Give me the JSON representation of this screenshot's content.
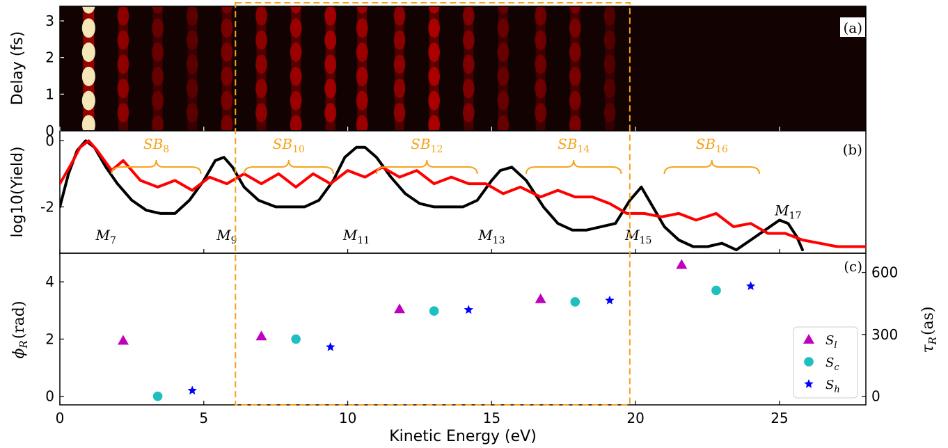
{
  "chart_data": [
    {
      "type": "heatmap",
      "panel": "(a)",
      "ylabel": "Delay (fs)",
      "xlim": [
        0,
        28
      ],
      "ylim": [
        0,
        3.4
      ],
      "yticks": [
        0,
        1,
        2,
        3
      ],
      "colormap": "hot",
      "bright_bands_eV": [
        1.0,
        2.2,
        3.4,
        4.6,
        5.8,
        7.0,
        8.2,
        9.4,
        10.5,
        11.8,
        13.0,
        14.2,
        15.4,
        16.7,
        17.9,
        19.1
      ],
      "band_strength": [
        1.0,
        0.35,
        0.22,
        0.18,
        0.28,
        0.35,
        0.4,
        0.42,
        0.4,
        0.35,
        0.45,
        0.3,
        0.22,
        0.25,
        0.28,
        0.15
      ],
      "oscillation_period_fs": 0.66
    },
    {
      "type": "line",
      "panel": "(b)",
      "ylabel": "log10(Yield)",
      "xlim": [
        0,
        28
      ],
      "ylim": [
        -3.4,
        0.3
      ],
      "yticks": [
        {
          "value": 0,
          "label": "0"
        },
        {
          "value": -2,
          "label": "-2"
        }
      ],
      "series": [
        {
          "name": "",
          "color": "#000000",
          "x": [
            0,
            0.3,
            0.6,
            0.9,
            1.2,
            1.6,
            2.0,
            2.5,
            3.0,
            3.5,
            4.0,
            4.5,
            5.0,
            5.4,
            5.7,
            6.0,
            6.4,
            6.9,
            7.5,
            8.0,
            8.5,
            9.0,
            9.5,
            9.9,
            10.3,
            10.6,
            11.0,
            11.5,
            12.0,
            12.5,
            13.0,
            13.5,
            14.0,
            14.5,
            15.0,
            15.3,
            15.7,
            16.2,
            16.8,
            17.3,
            17.8,
            18.3,
            18.8,
            19.3,
            19.8,
            20.2,
            20.6,
            21.0,
            21.5,
            22.0,
            22.5,
            23.0,
            23.5,
            24.0,
            24.5,
            25.0,
            25.3,
            25.6,
            25.8
          ],
          "y": [
            -2.0,
            -1.0,
            -0.3,
            0.0,
            -0.2,
            -0.8,
            -1.3,
            -1.8,
            -2.1,
            -2.2,
            -2.2,
            -1.8,
            -1.2,
            -0.6,
            -0.5,
            -0.8,
            -1.4,
            -1.8,
            -2.0,
            -2.0,
            -2.0,
            -1.8,
            -1.2,
            -0.5,
            -0.2,
            -0.2,
            -0.5,
            -1.1,
            -1.6,
            -1.9,
            -2.0,
            -2.0,
            -2.0,
            -1.8,
            -1.2,
            -0.9,
            -0.8,
            -1.2,
            -2.0,
            -2.5,
            -2.7,
            -2.7,
            -2.6,
            -2.5,
            -1.8,
            -1.4,
            -2.0,
            -2.6,
            -3.0,
            -3.2,
            -3.2,
            -3.1,
            -3.3,
            -3.0,
            -2.7,
            -2.4,
            -2.5,
            -2.9,
            -3.3
          ]
        },
        {
          "name": "",
          "color": "#ff0000",
          "x": [
            0,
            0.4,
            0.7,
            1.0,
            1.3,
            1.8,
            2.2,
            2.8,
            3.4,
            4.0,
            4.6,
            5.2,
            5.8,
            6.4,
            7.0,
            7.6,
            8.2,
            8.8,
            9.4,
            10.0,
            10.6,
            11.2,
            11.8,
            12.4,
            13.0,
            13.6,
            14.2,
            14.8,
            15.4,
            16.0,
            16.7,
            17.3,
            17.9,
            18.5,
            19.1,
            19.7,
            20.3,
            20.9,
            21.5,
            22.1,
            22.8,
            23.4,
            24.0,
            24.6,
            25.2,
            25.8,
            26.4,
            27.0,
            27.5,
            28.0
          ],
          "y": [
            -1.3,
            -0.7,
            -0.2,
            0.0,
            -0.3,
            -0.9,
            -0.6,
            -1.2,
            -1.4,
            -1.2,
            -1.5,
            -1.1,
            -1.3,
            -1.0,
            -1.3,
            -1.0,
            -1.4,
            -1.0,
            -1.3,
            -0.9,
            -1.1,
            -0.8,
            -1.1,
            -0.9,
            -1.3,
            -1.1,
            -1.3,
            -1.3,
            -1.6,
            -1.4,
            -1.7,
            -1.5,
            -1.7,
            -1.7,
            -1.9,
            -2.2,
            -2.2,
            -2.3,
            -2.2,
            -2.4,
            -2.2,
            -2.6,
            -2.5,
            -2.8,
            -2.8,
            -3.0,
            -3.1,
            -3.2,
            -3.2,
            -3.2
          ]
        }
      ],
      "annotations": [
        {
          "text": "M",
          "sub": "7",
          "x": 1.6,
          "y": -3.0
        },
        {
          "text": "M",
          "sub": "9",
          "x": 5.8,
          "y": -3.0
        },
        {
          "text": "M",
          "sub": "11",
          "x": 10.3,
          "y": -3.0
        },
        {
          "text": "M",
          "sub": "13",
          "x": 15.0,
          "y": -3.0
        },
        {
          "text": "M",
          "sub": "15",
          "x": 20.1,
          "y": -3.0
        },
        {
          "text": "M",
          "sub": "17",
          "x": 25.3,
          "y": -2.25
        }
      ],
      "sideband_groups": [
        {
          "text": "SB",
          "sub": "8",
          "x_start": 1.8,
          "x_end": 4.9
        },
        {
          "text": "SB",
          "sub": "10",
          "x_start": 6.4,
          "x_end": 9.5
        },
        {
          "text": "SB",
          "sub": "12",
          "x_start": 11.0,
          "x_end": 14.5
        },
        {
          "text": "SB",
          "sub": "14",
          "x_start": 16.2,
          "x_end": 19.5
        },
        {
          "text": "SB",
          "sub": "16",
          "x_start": 21.0,
          "x_end": 24.3
        }
      ]
    },
    {
      "type": "scatter",
      "panel": "(c)",
      "xlabel": "Kinetic Energy (eV)",
      "ylabel": "ϕ",
      "ylabel_sub": "R",
      "ylabel_unit": "(rad)",
      "ylabel_right": "τ",
      "ylabel_right_sub": "R",
      "ylabel_right_unit": "(as)",
      "xlim": [
        0,
        28
      ],
      "xticks": [
        0,
        5,
        10,
        15,
        20,
        25
      ],
      "ylim": [
        -0.3,
        5.0
      ],
      "yticks": [
        0,
        2,
        4
      ],
      "yticks_right": [
        {
          "value": 0,
          "label": "0"
        },
        {
          "value": 2.16,
          "label": "300"
        },
        {
          "value": 4.33,
          "label": "600"
        }
      ],
      "legend_position": "lower-right",
      "series": [
        {
          "name": "S",
          "sub": "l",
          "marker": "triangle",
          "color": "#bf00bf",
          "x": [
            2.2,
            7.0,
            11.8,
            16.7,
            21.6
          ],
          "y": [
            1.95,
            2.1,
            3.05,
            3.4,
            4.6
          ]
        },
        {
          "name": "S",
          "sub": "c",
          "marker": "circle",
          "color": "#1fbfbf",
          "x": [
            3.4,
            8.2,
            13.0,
            17.9,
            22.8
          ],
          "y": [
            0.0,
            2.0,
            2.98,
            3.3,
            3.7
          ]
        },
        {
          "name": "S",
          "sub": "h",
          "marker": "star",
          "color": "#0000ff",
          "x": [
            4.6,
            9.4,
            14.2,
            19.1,
            24.0
          ],
          "y": [
            0.2,
            1.72,
            3.02,
            3.35,
            3.85
          ]
        }
      ]
    }
  ],
  "highlight_box": {
    "x_start": 6.1,
    "x_end": 19.8,
    "color": "#f5a31a"
  }
}
